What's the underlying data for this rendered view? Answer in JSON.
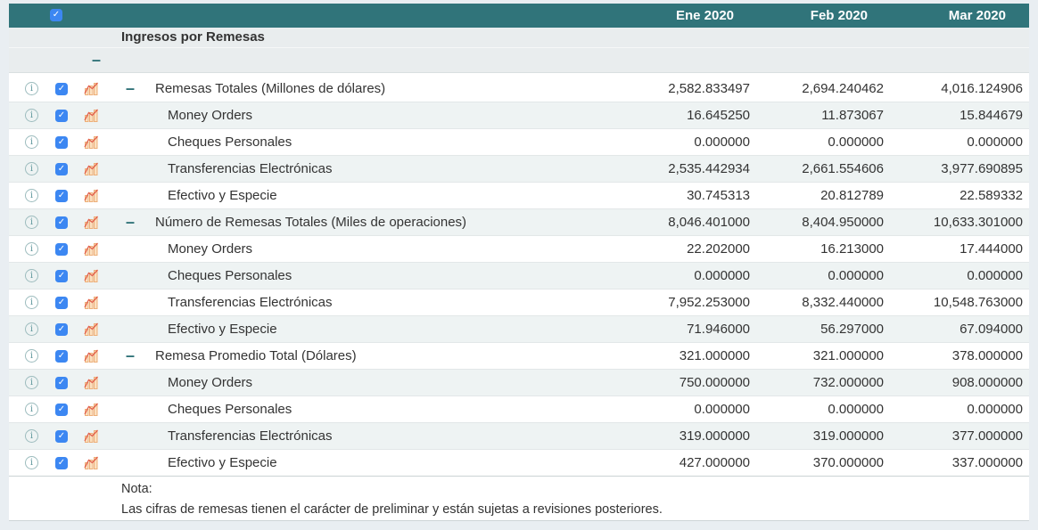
{
  "header": {
    "select_all": {
      "checked": true
    },
    "columns": [
      "Ene 2020",
      "Feb 2020",
      "Mar 2020"
    ]
  },
  "section": {
    "title": "Ingresos por Remesas",
    "collapse_dash": "–"
  },
  "rows": [
    {
      "label": "Remesas Totales (Millones de dólares)",
      "level": 0,
      "expandable": true,
      "checked": true,
      "values": [
        "2,582.833497",
        "2,694.240462",
        "4,016.124906"
      ]
    },
    {
      "label": "Money Orders",
      "level": 1,
      "expandable": false,
      "checked": true,
      "values": [
        "16.645250",
        "11.873067",
        "15.844679"
      ]
    },
    {
      "label": "Cheques Personales",
      "level": 1,
      "expandable": false,
      "checked": true,
      "values": [
        "0.000000",
        "0.000000",
        "0.000000"
      ]
    },
    {
      "label": "Transferencias Electrónicas",
      "level": 1,
      "expandable": false,
      "checked": true,
      "values": [
        "2,535.442934",
        "2,661.554606",
        "3,977.690895"
      ]
    },
    {
      "label": "Efectivo y Especie",
      "level": 1,
      "expandable": false,
      "checked": true,
      "values": [
        "30.745313",
        "20.812789",
        "22.589332"
      ]
    },
    {
      "label": "Número de Remesas Totales (Miles de operaciones)",
      "level": 0,
      "expandable": true,
      "checked": true,
      "values": [
        "8,046.401000",
        "8,404.950000",
        "10,633.301000"
      ]
    },
    {
      "label": "Money Orders",
      "level": 1,
      "expandable": false,
      "checked": true,
      "values": [
        "22.202000",
        "16.213000",
        "17.444000"
      ]
    },
    {
      "label": "Cheques Personales",
      "level": 1,
      "expandable": false,
      "checked": true,
      "values": [
        "0.000000",
        "0.000000",
        "0.000000"
      ]
    },
    {
      "label": "Transferencias Electrónicas",
      "level": 1,
      "expandable": false,
      "checked": true,
      "values": [
        "7,952.253000",
        "8,332.440000",
        "10,548.763000"
      ]
    },
    {
      "label": "Efectivo y Especie",
      "level": 1,
      "expandable": false,
      "checked": true,
      "values": [
        "71.946000",
        "56.297000",
        "67.094000"
      ]
    },
    {
      "label": "Remesa Promedio Total (Dólares)",
      "level": 0,
      "expandable": true,
      "checked": true,
      "values": [
        "321.000000",
        "321.000000",
        "378.000000"
      ]
    },
    {
      "label": "Money Orders",
      "level": 1,
      "expandable": false,
      "checked": true,
      "values": [
        "750.000000",
        "732.000000",
        "908.000000"
      ]
    },
    {
      "label": "Cheques Personales",
      "level": 1,
      "expandable": false,
      "checked": true,
      "values": [
        "0.000000",
        "0.000000",
        "0.000000"
      ]
    },
    {
      "label": "Transferencias Electrónicas",
      "level": 1,
      "expandable": false,
      "checked": true,
      "values": [
        "319.000000",
        "319.000000",
        "377.000000"
      ]
    },
    {
      "label": "Efectivo y Especie",
      "level": 1,
      "expandable": false,
      "checked": true,
      "values": [
        "427.000000",
        "370.000000",
        "337.000000"
      ]
    }
  ],
  "note": {
    "label": "Nota:",
    "text": "Las cifras de remesas tienen el carácter de preliminar y están sujetas a revisiones posteriores."
  },
  "icons": {
    "check_glyph": "✓",
    "info_glyph": "i",
    "info": "info-icon",
    "chart": "mini-bar-chart-icon"
  },
  "colors": {
    "header_teal": "#30747A",
    "checkbox_blue": "#3C87F2",
    "alt_row": "#EEF3F3",
    "section_bg": "#E9EDEE",
    "dash_teal": "#2F7277",
    "chart_bar_fill": "#FBE0C0",
    "chart_bar_stroke": "#EDAF79",
    "chart_line": "#E2604C",
    "info_icon": "#61989D"
  }
}
